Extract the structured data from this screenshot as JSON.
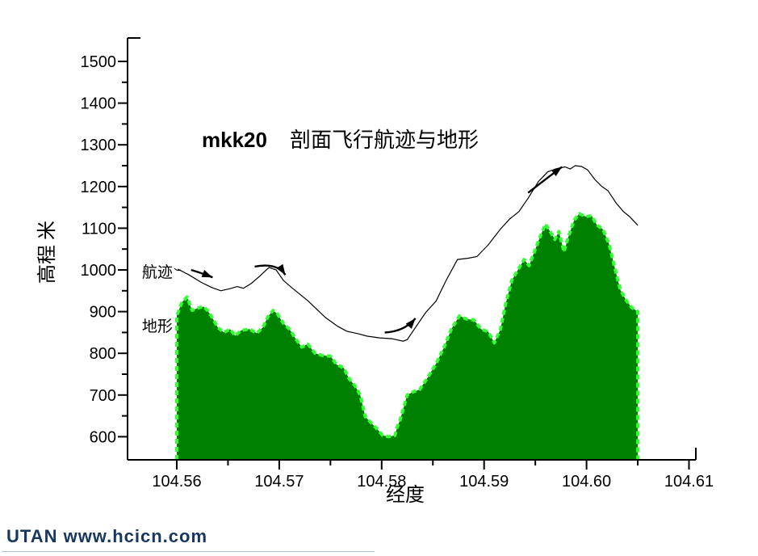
{
  "footer": {
    "text": "UTAN  www.hcicn.com",
    "color": "#17375E"
  },
  "chart_data": {
    "type": "area",
    "title": {
      "prefix": "mkk20",
      "main": "剖面飞行航迹与地形"
    },
    "xlabel": "经度",
    "ylabel": "高程 米",
    "xlim": [
      104.5552,
      104.6157
    ],
    "ylim": [
      545,
      1556
    ],
    "grid": false,
    "legend_position": "inside-left-as-annotations",
    "x_ticks": [
      104.56,
      104.57,
      104.58,
      104.59,
      104.6,
      104.61
    ],
    "x_tick_labels": [
      "104.56",
      "104.57",
      "104.58",
      "104.59",
      "104.60",
      "104.61"
    ],
    "x_minor_ticks": [
      104.565,
      104.575,
      104.585,
      104.595,
      104.605
    ],
    "y_ticks": [
      600,
      700,
      800,
      900,
      1000,
      1100,
      1200,
      1300,
      1400,
      1500
    ],
    "y_tick_labels": [
      "600",
      "700",
      "800",
      "900",
      "1000",
      "1100",
      "1200",
      "1300",
      "1400",
      "1500"
    ],
    "y_minor_ticks": [
      650,
      750,
      850,
      950,
      1050,
      1150,
      1250,
      1350,
      1450
    ],
    "colors": {
      "terrain_fill": "#008000",
      "terrain_edge": "#33FF33",
      "flight_line": "#000000",
      "axis": "#000000"
    },
    "series": [
      {
        "name": "地形",
        "type": "area",
        "points": [
          [
            104.56,
            890
          ],
          [
            104.5605,
            922
          ],
          [
            104.561,
            935
          ],
          [
            104.5615,
            903
          ],
          [
            104.562,
            908
          ],
          [
            104.5626,
            912
          ],
          [
            104.563,
            903
          ],
          [
            104.5634,
            888
          ],
          [
            104.564,
            862
          ],
          [
            104.5646,
            850
          ],
          [
            104.5652,
            858
          ],
          [
            104.5657,
            842
          ],
          [
            104.5663,
            855
          ],
          [
            104.5671,
            858
          ],
          [
            104.5678,
            848
          ],
          [
            104.5684,
            862
          ],
          [
            104.5689,
            888
          ],
          [
            104.5694,
            903
          ],
          [
            104.5698,
            895
          ],
          [
            104.5704,
            872
          ],
          [
            104.571,
            858
          ],
          [
            104.5716,
            835
          ],
          [
            104.5722,
            815
          ],
          [
            104.5728,
            822
          ],
          [
            104.5735,
            800
          ],
          [
            104.5742,
            795
          ],
          [
            104.575,
            793
          ],
          [
            104.5756,
            773
          ],
          [
            104.5763,
            765
          ],
          [
            104.5768,
            740
          ],
          [
            104.5774,
            722
          ],
          [
            104.5779,
            700
          ],
          [
            104.5784,
            648
          ],
          [
            104.5789,
            635
          ],
          [
            104.5795,
            620
          ],
          [
            104.5801,
            603
          ],
          [
            104.5807,
            600
          ],
          [
            104.5813,
            603
          ],
          [
            104.5815,
            622
          ],
          [
            104.5818,
            640
          ],
          [
            104.5825,
            700
          ],
          [
            104.583,
            707
          ],
          [
            104.5837,
            713
          ],
          [
            104.5845,
            742
          ],
          [
            104.5853,
            775
          ],
          [
            104.5861,
            815
          ],
          [
            104.5868,
            858
          ],
          [
            104.5876,
            890
          ],
          [
            104.5883,
            882
          ],
          [
            104.589,
            880
          ],
          [
            104.5897,
            858
          ],
          [
            104.5904,
            852
          ],
          [
            104.591,
            825
          ],
          [
            104.5916,
            858
          ],
          [
            104.5921,
            918
          ],
          [
            104.5927,
            975
          ],
          [
            104.5933,
            1000
          ],
          [
            104.5939,
            1025
          ],
          [
            104.5944,
            1010
          ],
          [
            104.5949,
            1043
          ],
          [
            104.5955,
            1082
          ],
          [
            104.596,
            1110
          ],
          [
            104.5965,
            1090
          ],
          [
            104.5969,
            1073
          ],
          [
            104.5973,
            1092
          ],
          [
            104.5978,
            1043
          ],
          [
            104.5982,
            1078
          ],
          [
            104.5988,
            1120
          ],
          [
            104.5993,
            1135
          ],
          [
            104.5999,
            1128
          ],
          [
            104.6005,
            1130
          ],
          [
            104.601,
            1108
          ],
          [
            104.6016,
            1097
          ],
          [
            104.6022,
            1062
          ],
          [
            104.6027,
            1010
          ],
          [
            104.6033,
            952
          ],
          [
            104.6039,
            926
          ],
          [
            104.6044,
            910
          ],
          [
            104.605,
            900
          ]
        ]
      },
      {
        "name": "航迹",
        "type": "line",
        "points": [
          [
            104.5601,
            1002
          ],
          [
            104.5612,
            988
          ],
          [
            104.5624,
            970
          ],
          [
            104.5634,
            958
          ],
          [
            104.5643,
            950
          ],
          [
            104.5652,
            955
          ],
          [
            104.5659,
            960
          ],
          [
            104.5665,
            956
          ],
          [
            104.5673,
            968
          ],
          [
            104.5681,
            985
          ],
          [
            104.569,
            1006
          ],
          [
            104.5697,
            1000
          ],
          [
            104.5704,
            975
          ],
          [
            104.5712,
            958
          ],
          [
            104.5728,
            926
          ],
          [
            104.5745,
            886
          ],
          [
            104.5757,
            865
          ],
          [
            104.5766,
            853
          ],
          [
            104.5777,
            847
          ],
          [
            104.5786,
            841
          ],
          [
            104.5798,
            837
          ],
          [
            104.581,
            835
          ],
          [
            104.5821,
            829
          ],
          [
            104.5825,
            833
          ],
          [
            104.5833,
            862
          ],
          [
            104.5843,
            898
          ],
          [
            104.5853,
            925
          ],
          [
            104.5863,
            975
          ],
          [
            104.5874,
            1025
          ],
          [
            104.5884,
            1028
          ],
          [
            104.5893,
            1032
          ],
          [
            104.5904,
            1060
          ],
          [
            104.5916,
            1098
          ],
          [
            104.5925,
            1122
          ],
          [
            104.5934,
            1140
          ],
          [
            104.5943,
            1172
          ],
          [
            104.5953,
            1212
          ],
          [
            104.5962,
            1235
          ],
          [
            104.5971,
            1243
          ],
          [
            104.5979,
            1247
          ],
          [
            104.5984,
            1242
          ],
          [
            104.5989,
            1250
          ],
          [
            104.5995,
            1248
          ],
          [
            104.6001,
            1240
          ],
          [
            104.6008,
            1217
          ],
          [
            104.6015,
            1200
          ],
          [
            104.6021,
            1190
          ],
          [
            104.6029,
            1160
          ],
          [
            104.6036,
            1140
          ],
          [
            104.6042,
            1128
          ],
          [
            104.605,
            1107
          ]
        ]
      }
    ],
    "annotations": [
      {
        "text": "航迹",
        "x": 104.5596,
        "y": 994
      },
      {
        "text": "地形",
        "x": 104.5596,
        "y": 864
      }
    ],
    "direction_arrows": [
      {
        "tail": [
          104.5614,
          1000
        ],
        "ctrl": [
          104.5625,
          992
        ],
        "tip": [
          104.5635,
          982
        ]
      },
      {
        "tail": [
          104.5676,
          1008
        ],
        "ctrl": [
          104.5698,
          1018
        ],
        "tip": [
          104.5706,
          988
        ]
      },
      {
        "tail": [
          104.5803,
          850
        ],
        "ctrl": [
          104.5822,
          852
        ],
        "tip": [
          104.5833,
          884
        ]
      },
      {
        "tail": [
          104.5943,
          1185
        ],
        "ctrl": [
          104.5957,
          1212
        ],
        "tip": [
          104.5976,
          1247
        ]
      }
    ]
  }
}
